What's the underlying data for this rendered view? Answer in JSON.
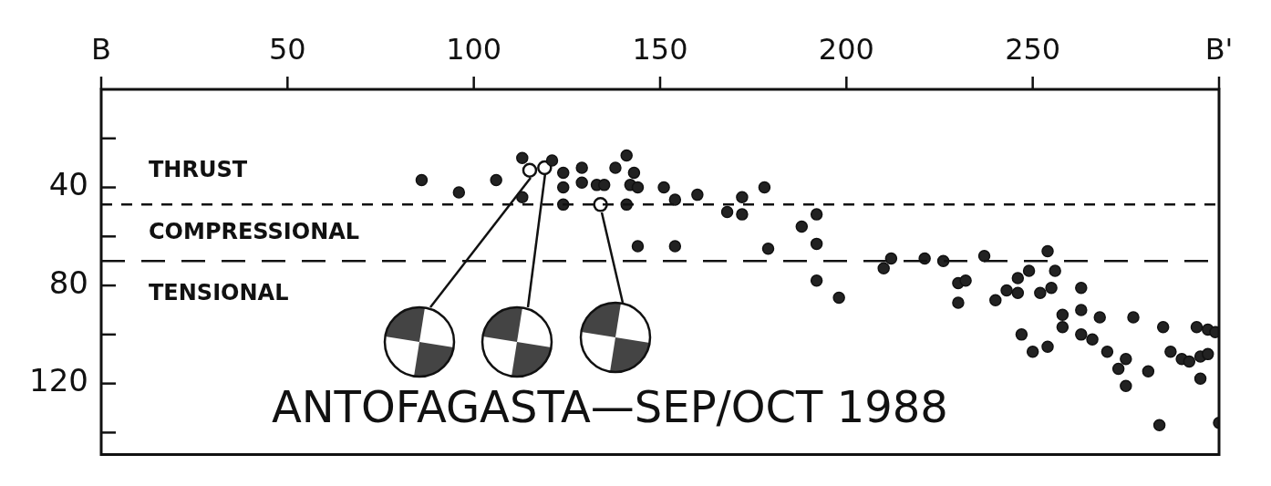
{
  "chart_data": {
    "type": "scatter",
    "title": "ANTOFAGASTA—SEP/OCT 1988",
    "annotations": [
      "THRUST",
      "COMPRESSIONAL",
      "TENSIONAL"
    ],
    "xlim": [
      0,
      300
    ],
    "xticks": [
      {
        "value": 0,
        "label": "B"
      },
      50,
      100,
      150,
      200,
      250,
      {
        "value": 300,
        "label": "B'"
      }
    ],
    "ylim": [
      149,
      0
    ],
    "yticks": [
      {
        "value": 20,
        "label": null
      },
      40,
      {
        "value": 60,
        "label": null
      },
      80,
      {
        "value": 100,
        "label": null
      },
      120,
      {
        "value": 140,
        "label": null
      }
    ],
    "grid": false,
    "legend": false,
    "marker": "circle",
    "ref_lines": [
      {
        "axis": "y",
        "value": 47,
        "line_style": "dashed",
        "color": "#111111"
      },
      {
        "axis": "y",
        "value": 70,
        "line_style": "dashed",
        "color": "#111111"
      }
    ],
    "series": [
      {
        "color": "#222222",
        "x": [
          86,
          96,
          106,
          113,
          113,
          121,
          124,
          124,
          124,
          129,
          129,
          133,
          135,
          138,
          141,
          143,
          142,
          141,
          144,
          151,
          154,
          160,
          168,
          172,
          172,
          178,
          144,
          154,
          179,
          188,
          192,
          192,
          192,
          198,
          210,
          212,
          221,
          226,
          237,
          230,
          232,
          230,
          240,
          243,
          246,
          249,
          246,
          252,
          255,
          254,
          256,
          263,
          247,
          250,
          254,
          258,
          258,
          263,
          263,
          266,
          268,
          270,
          275,
          273,
          277,
          275,
          281,
          285,
          284,
          287,
          290,
          292,
          295,
          297,
          295,
          294,
          297,
          299,
          300
        ],
        "values": [
          37,
          42,
          37,
          28,
          44,
          29,
          34,
          40,
          47,
          32,
          38,
          39,
          39,
          32,
          27,
          34,
          39,
          47,
          40,
          40,
          45,
          43,
          50,
          44,
          51,
          40,
          64,
          64,
          65,
          56,
          51,
          63,
          78,
          85,
          73,
          69,
          69,
          70,
          68,
          79,
          78,
          87,
          86,
          82,
          77,
          74,
          83,
          83,
          81,
          66,
          74,
          81,
          100,
          107,
          105,
          92,
          97,
          90,
          100,
          102,
          93,
          107,
          110,
          114,
          93,
          121,
          115,
          97,
          137,
          107,
          110,
          111,
          109,
          108,
          118,
          97,
          98,
          99,
          136
        ]
      },
      {
        "color": "#ffffff",
        "x": [
          115,
          119,
          134
        ],
        "values": [
          33,
          32,
          47
        ]
      }
    ]
  }
}
